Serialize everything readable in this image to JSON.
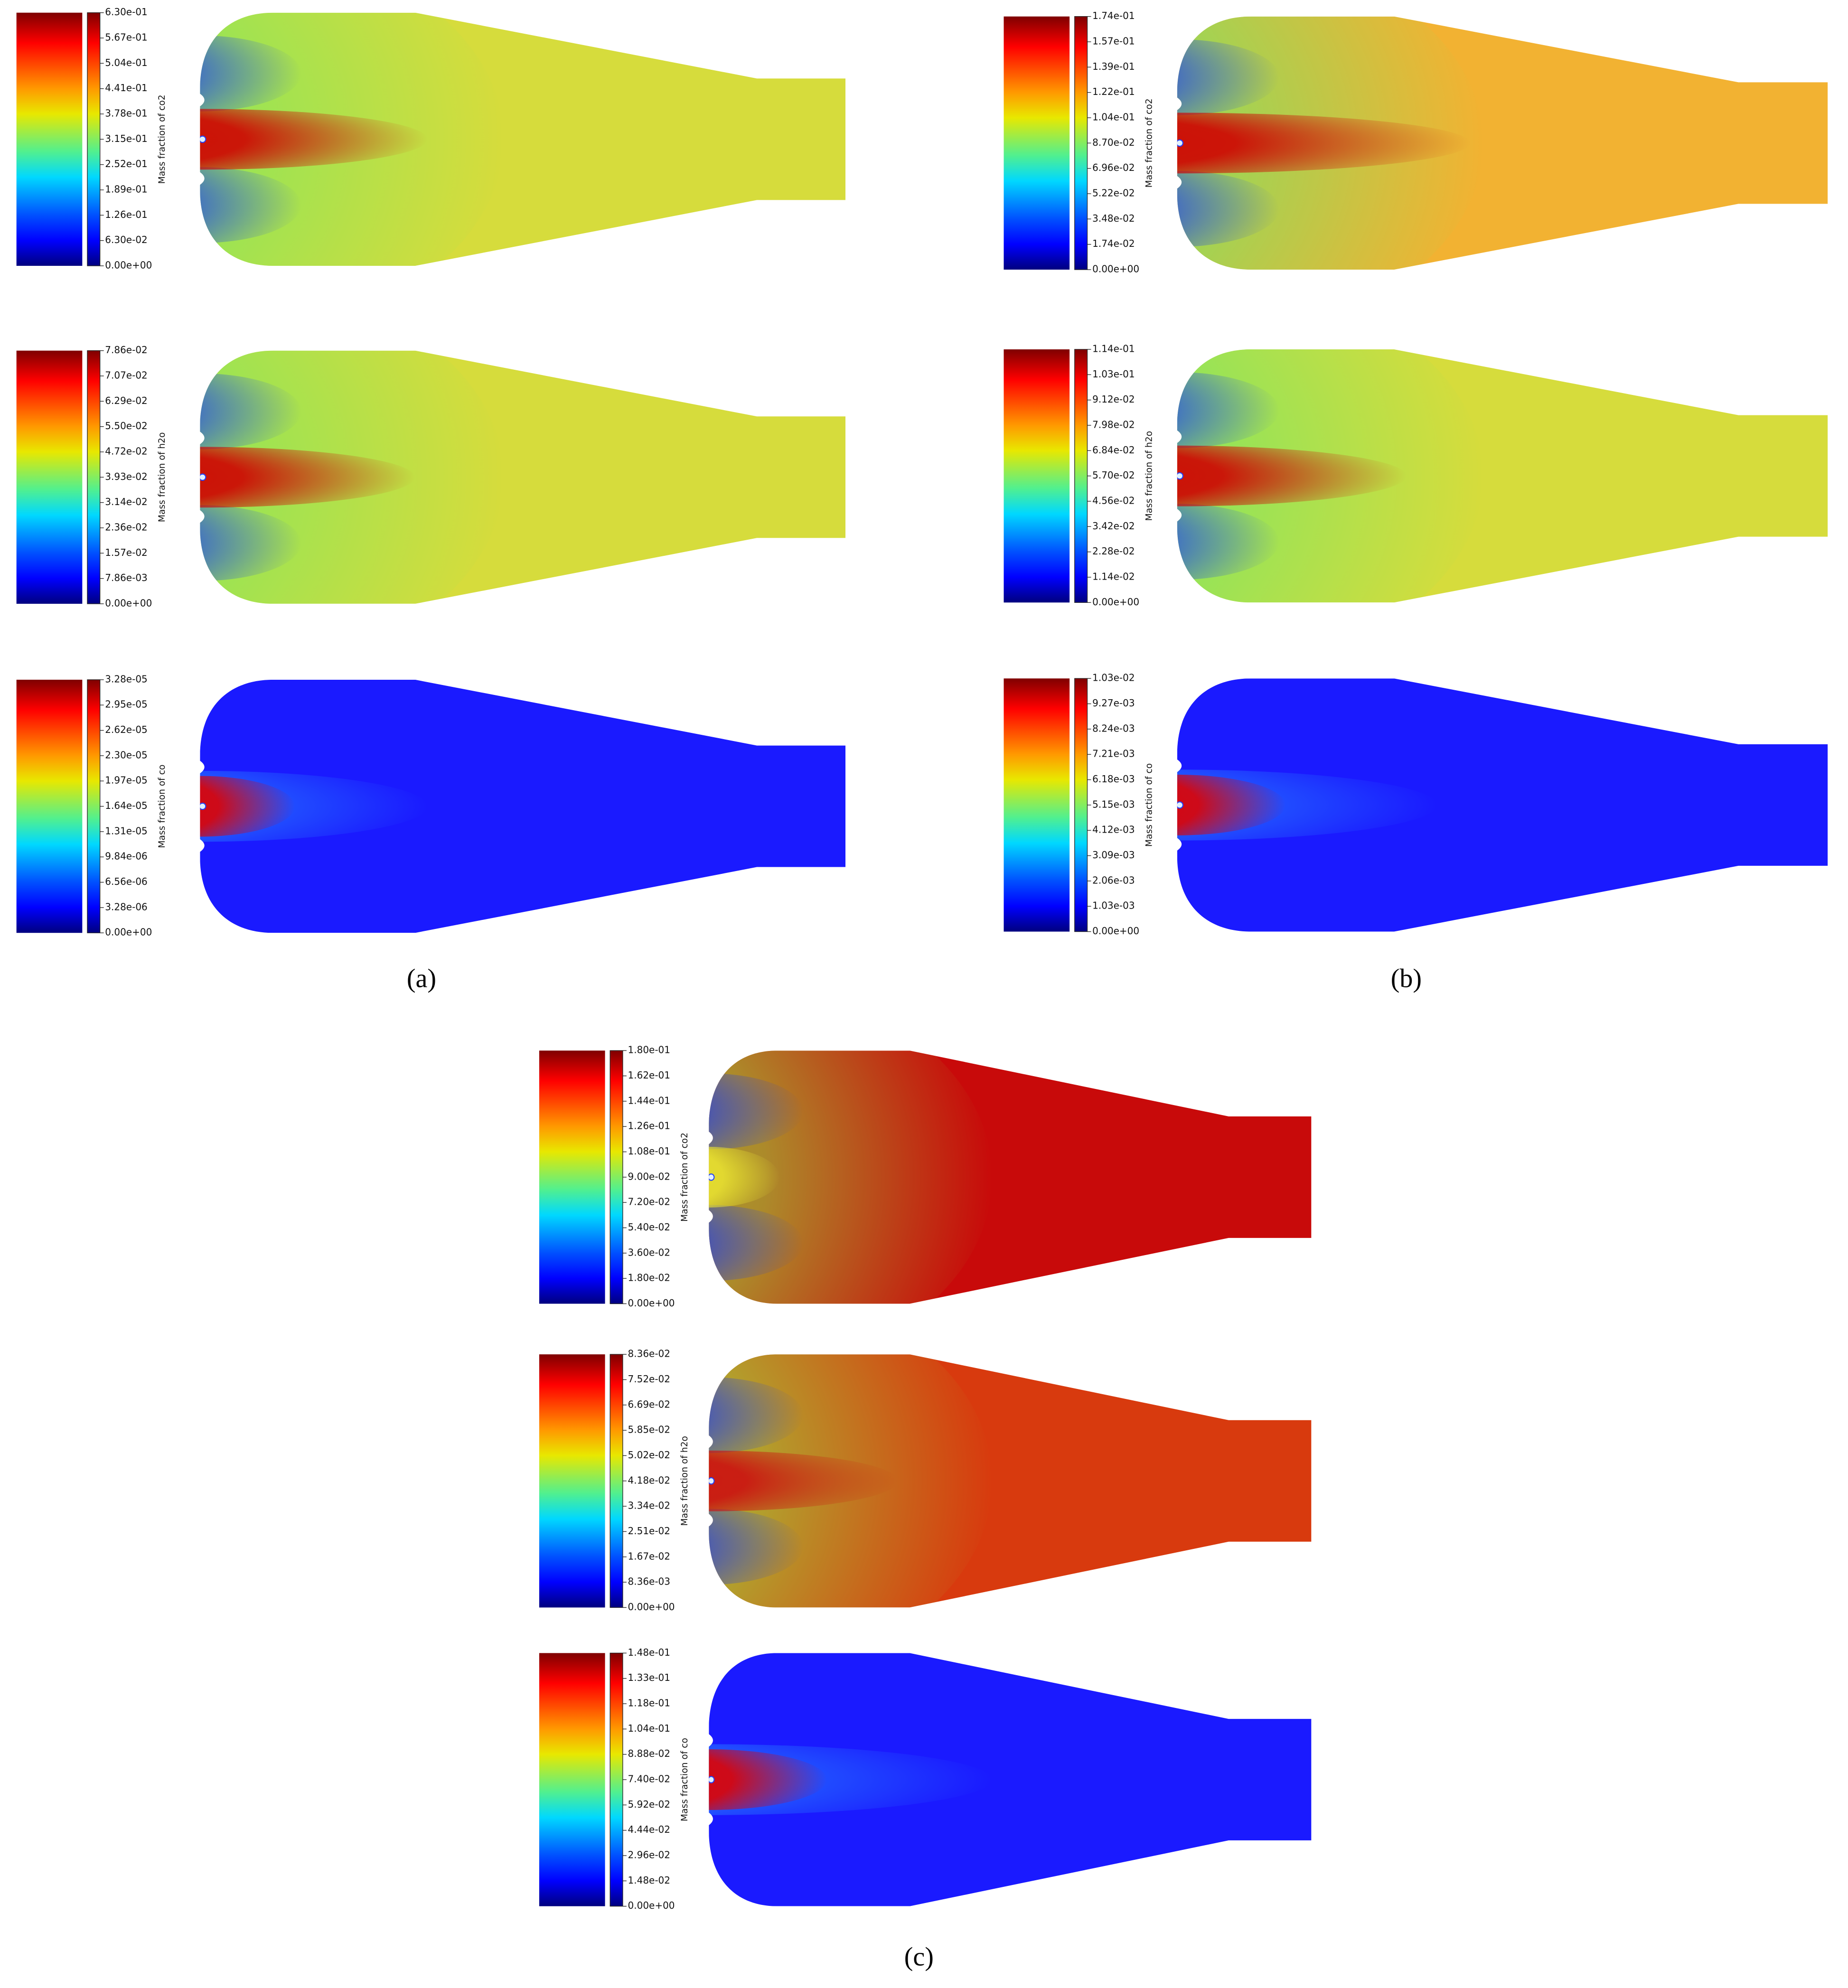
{
  "panels": [
    {
      "label": "(a)",
      "plots": [
        {
          "axis_label": "Mass fraction of co2",
          "ticks": [
            "6.30e-01",
            "5.67e-01",
            "5.04e-01",
            "4.41e-01",
            "3.78e-01",
            "3.15e-01",
            "2.52e-01",
            "1.89e-01",
            "1.26e-01",
            "6.30e-02",
            "0.00e+00"
          ]
        },
        {
          "axis_label": "Mass fraction of h2o",
          "ticks": [
            "7.86e-02",
            "7.07e-02",
            "6.29e-02",
            "5.50e-02",
            "4.72e-02",
            "3.93e-02",
            "3.14e-02",
            "2.36e-02",
            "1.57e-02",
            "7.86e-03",
            "0.00e+00"
          ]
        },
        {
          "axis_label": "Mass fraction of co",
          "ticks": [
            "3.28e-05",
            "2.95e-05",
            "2.62e-05",
            "2.30e-05",
            "1.97e-05",
            "1.64e-05",
            "1.31e-05",
            "9.84e-06",
            "6.56e-06",
            "3.28e-06",
            "0.00e+00"
          ]
        }
      ]
    },
    {
      "label": "(b)",
      "plots": [
        {
          "axis_label": "Mass fraction of co2",
          "ticks": [
            "1.74e-01",
            "1.57e-01",
            "1.39e-01",
            "1.22e-01",
            "1.04e-01",
            "8.70e-02",
            "6.96e-02",
            "5.22e-02",
            "3.48e-02",
            "1.74e-02",
            "0.00e+00"
          ]
        },
        {
          "axis_label": "Mass fraction of h2o",
          "ticks": [
            "1.14e-01",
            "1.03e-01",
            "9.12e-02",
            "7.98e-02",
            "6.84e-02",
            "5.70e-02",
            "4.56e-02",
            "3.42e-02",
            "2.28e-02",
            "1.14e-02",
            "0.00e+00"
          ]
        },
        {
          "axis_label": "Mass fraction of co",
          "ticks": [
            "1.03e-02",
            "9.27e-03",
            "8.24e-03",
            "7.21e-03",
            "6.18e-03",
            "5.15e-03",
            "4.12e-03",
            "3.09e-03",
            "2.06e-03",
            "1.03e-03",
            "0.00e+00"
          ]
        }
      ]
    },
    {
      "label": "(c)",
      "plots": [
        {
          "axis_label": "Mass fraction of co2",
          "ticks": [
            "1.80e-01",
            "1.62e-01",
            "1.44e-01",
            "1.26e-01",
            "1.08e-01",
            "9.00e-02",
            "7.20e-02",
            "5.40e-02",
            "3.60e-02",
            "1.80e-02",
            "0.00e+00"
          ]
        },
        {
          "axis_label": "Mass fraction of h2o",
          "ticks": [
            "8.36e-02",
            "7.52e-02",
            "6.69e-02",
            "5.85e-02",
            "5.02e-02",
            "4.18e-02",
            "3.34e-02",
            "2.51e-02",
            "1.67e-02",
            "8.36e-03",
            "0.00e+00"
          ]
        },
        {
          "axis_label": "Mass fraction of co",
          "ticks": [
            "1.48e-01",
            "1.33e-01",
            "1.18e-01",
            "1.04e-01",
            "8.88e-02",
            "7.40e-02",
            "5.92e-02",
            "4.44e-02",
            "2.96e-02",
            "1.48e-02",
            "0.00e+00"
          ]
        }
      ]
    }
  ]
}
